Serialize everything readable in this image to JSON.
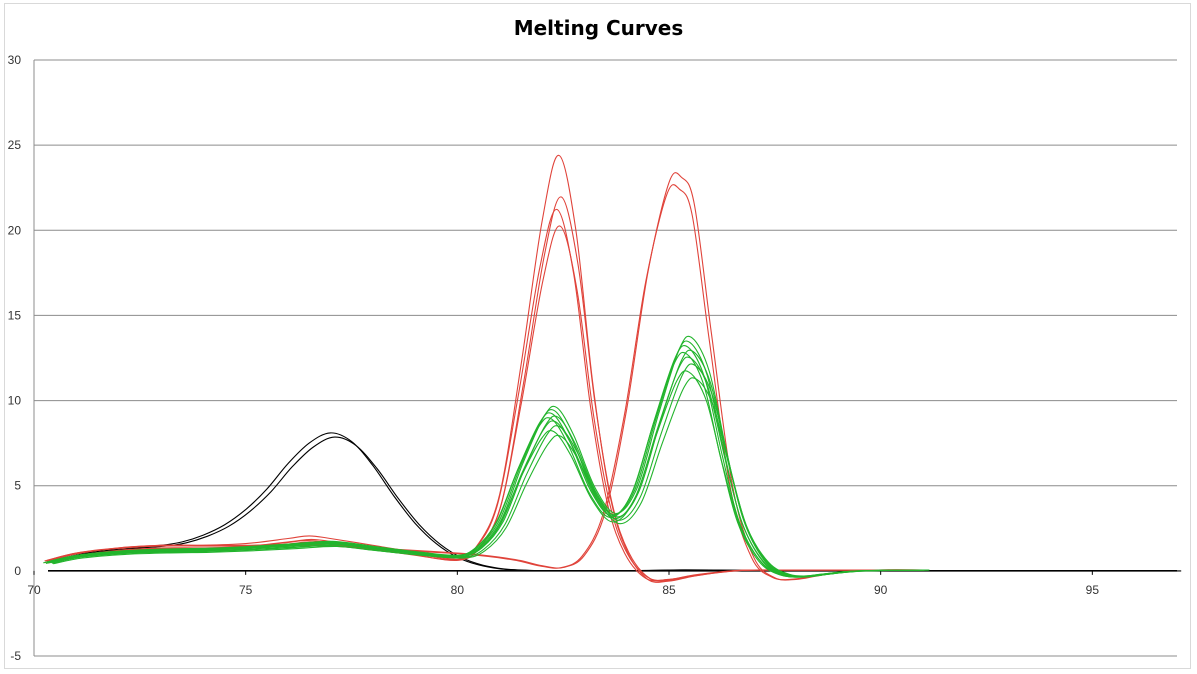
{
  "chart_data": {
    "type": "line",
    "title": "Melting Curves",
    "xlabel": "",
    "ylabel": "",
    "xlim": [
      70,
      97
    ],
    "ylim": [
      -5,
      30
    ],
    "x_ticks": [
      70,
      75,
      80,
      85,
      90,
      95
    ],
    "y_ticks": [
      -5,
      0,
      5,
      10,
      15,
      20,
      25,
      30
    ],
    "grid": "horizontal",
    "legend": "none",
    "colors": {
      "black": "#000000",
      "red": "#e0433a",
      "green": "#22b42c"
    },
    "groups": [
      {
        "color": "black",
        "base_x": [
          70.3,
          71,
          72,
          73,
          73.5,
          74,
          74.5,
          75,
          75.5,
          76,
          76.5,
          77,
          77.5,
          78,
          78.5,
          79,
          79.5,
          80,
          80.5,
          81,
          81.5,
          82,
          83,
          84,
          85,
          86,
          88,
          90,
          92,
          94,
          96,
          97
        ],
        "base_y": [
          0.55,
          1.0,
          1.3,
          1.5,
          1.7,
          2.1,
          2.7,
          3.6,
          4.8,
          6.3,
          7.5,
          8.1,
          7.6,
          6.2,
          4.4,
          2.8,
          1.6,
          0.8,
          0.35,
          0.12,
          0.04,
          0.0,
          0,
          0,
          0.05,
          0.05,
          0,
          0,
          0,
          0,
          0,
          0
        ],
        "curves": [
          {
            "shift": 0.0,
            "scale": 1.0
          },
          {
            "shift": 0.1,
            "scale": 0.97
          }
        ]
      },
      {
        "color": "red",
        "base_x": [
          70.3,
          71,
          72,
          73,
          74,
          75,
          76,
          76.5,
          77,
          78,
          79,
          80,
          80.5,
          81,
          81.5,
          82,
          82.4,
          82.8,
          83.2,
          83.6,
          84,
          84.5,
          85,
          85.5,
          86,
          86.5,
          87,
          87.5,
          88,
          89,
          90,
          91
        ],
        "base_y": [
          0.55,
          1.0,
          1.35,
          1.5,
          1.5,
          1.6,
          1.9,
          2.05,
          1.9,
          1.5,
          1.1,
          0.75,
          1.6,
          4.5,
          12.0,
          20.5,
          24.4,
          20.0,
          11.0,
          4.5,
          1.2,
          -0.5,
          -0.6,
          -0.35,
          -0.15,
          0.0,
          0.05,
          0.05,
          0.05,
          0.05,
          0.05,
          0.05
        ],
        "curves": [
          {
            "shift": 0.0,
            "scale": 1.0
          },
          {
            "shift": 0.05,
            "scale": 0.9
          },
          {
            "shift": -0.05,
            "scale": 0.87
          },
          {
            "shift": 0.02,
            "scale": 0.83
          }
        ]
      },
      {
        "color": "red",
        "base_x": [
          70.3,
          71,
          72,
          73,
          74,
          75,
          76,
          77,
          78,
          79,
          80,
          80.5,
          81,
          81.5,
          82,
          82.5,
          83,
          83.5,
          84,
          84.5,
          85,
          85.3,
          85.6,
          86,
          86.5,
          87,
          87.5,
          88,
          88.5,
          89,
          90,
          91
        ],
        "base_y": [
          0.6,
          1.05,
          1.35,
          1.5,
          1.5,
          1.5,
          1.55,
          1.5,
          1.35,
          1.2,
          1.05,
          0.95,
          0.8,
          0.6,
          0.3,
          0.2,
          0.9,
          3.5,
          9.5,
          17.5,
          22.8,
          23.1,
          21.5,
          14.0,
          5.0,
          0.8,
          -0.4,
          -0.5,
          -0.3,
          -0.1,
          0.05,
          0.05
        ],
        "curves": [
          {
            "shift": 0.0,
            "scale": 1.0
          },
          {
            "shift": -0.05,
            "scale": 0.97
          }
        ]
      },
      {
        "color": "green",
        "base_x": [
          70.3,
          71,
          72,
          73,
          74,
          75,
          76,
          77,
          78,
          79,
          80,
          80.5,
          81,
          81.5,
          82,
          82.3,
          82.7,
          83.2,
          83.7,
          84.2,
          84.7,
          85.2,
          85.5,
          85.9,
          86.3,
          86.7,
          87.2,
          87.7,
          88.2,
          88.7,
          89.5,
          91
        ],
        "base_y": [
          0.5,
          0.9,
          1.15,
          1.25,
          1.3,
          1.4,
          1.55,
          1.7,
          1.4,
          1.1,
          0.9,
          1.4,
          3.0,
          6.2,
          8.9,
          9.4,
          7.8,
          4.8,
          3.3,
          4.8,
          9.0,
          12.8,
          13.4,
          11.5,
          7.0,
          3.0,
          0.6,
          -0.25,
          -0.35,
          -0.2,
          0.0,
          0.05
        ],
        "curves": [
          {
            "shift": 0.0,
            "scale": 1.0
          },
          {
            "shift": 0.05,
            "scale": 1.02
          },
          {
            "shift": -0.05,
            "scale": 0.98
          },
          {
            "shift": 0.08,
            "scale": 0.96
          },
          {
            "shift": -0.08,
            "scale": 0.95
          },
          {
            "shift": 0.03,
            "scale": 0.93
          },
          {
            "shift": 0.12,
            "scale": 0.9
          },
          {
            "shift": -0.02,
            "scale": 0.87
          },
          {
            "shift": 0.15,
            "scale": 0.84
          }
        ]
      }
    ]
  }
}
